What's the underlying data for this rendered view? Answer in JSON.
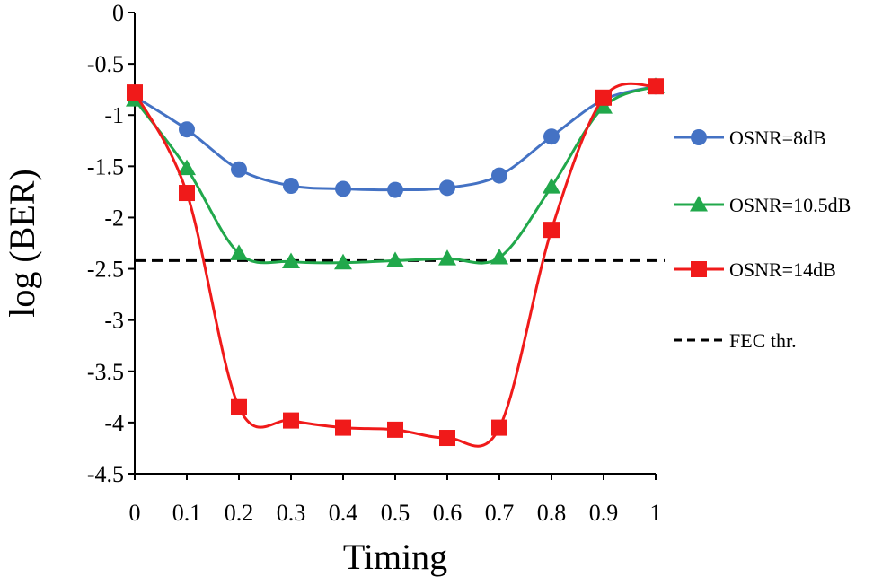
{
  "chart_data": {
    "type": "line",
    "xlabel": "Timing",
    "ylabel": "log (BER)",
    "xlim": [
      0,
      1
    ],
    "ylim": [
      -4.5,
      0
    ],
    "x_ticks": [
      0,
      0.1,
      0.2,
      0.3,
      0.4,
      0.5,
      0.6,
      0.7,
      0.8,
      0.9,
      1
    ],
    "x_tick_labels": [
      "0",
      "0.1",
      "0.2",
      "0.3",
      "0.4",
      "0.5",
      "0.6",
      "0.7",
      "0.8",
      "0.9",
      "1"
    ],
    "y_ticks": [
      0,
      -0.5,
      -1,
      -1.5,
      -2,
      -2.5,
      -3,
      -3.5,
      -4,
      -4.5
    ],
    "y_tick_labels": [
      "0",
      "-0.5",
      "-1",
      "-1.5",
      "-2",
      "-2.5",
      "-3",
      "-3.5",
      "-4",
      "-4.5"
    ],
    "grid": false,
    "legend_position": "right",
    "x": [
      0,
      0.1,
      0.2,
      0.3,
      0.4,
      0.5,
      0.6,
      0.7,
      0.8,
      0.9,
      1
    ],
    "series": [
      {
        "name": "OSNR=8dB",
        "marker": "circle",
        "color": "#4472C4",
        "values": [
          -0.82,
          -1.14,
          -1.53,
          -1.69,
          -1.72,
          -1.73,
          -1.71,
          -1.59,
          -1.21,
          -0.85,
          -0.72
        ]
      },
      {
        "name": "OSNR=10.5dB",
        "marker": "triangle",
        "color": "#21A84B",
        "values": [
          -0.85,
          -1.52,
          -2.35,
          -2.43,
          -2.44,
          -2.42,
          -2.4,
          -2.39,
          -1.7,
          -0.92,
          -0.72
        ]
      },
      {
        "name": "OSNR=14dB",
        "marker": "square",
        "color": "#F01A1A",
        "values": [
          -0.78,
          -1.76,
          -3.85,
          -3.98,
          -4.05,
          -4.07,
          -4.15,
          -4.05,
          -2.12,
          -0.83,
          -0.72
        ]
      }
    ],
    "threshold": {
      "name": "FEC thr.",
      "style": "dashed",
      "color": "#000000",
      "value": -2.42
    }
  }
}
